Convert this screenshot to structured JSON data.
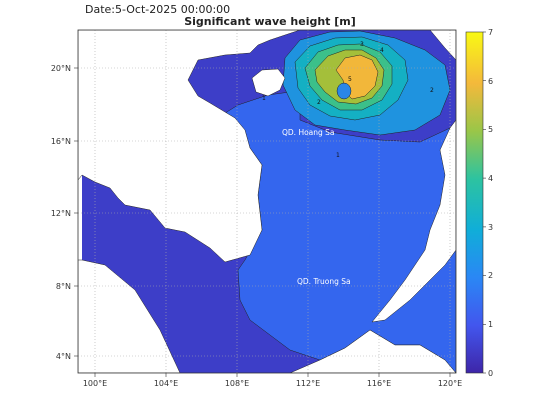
{
  "header": {
    "date_label": "Date:5-Oct-2025 00:00:00",
    "title": "Significant wave height [m]"
  },
  "map": {
    "lon_ticks": [
      {
        "value": 100,
        "label": "100°E"
      },
      {
        "value": 104,
        "label": "104°E"
      },
      {
        "value": 108,
        "label": "108°E"
      },
      {
        "value": 112,
        "label": "112°E"
      },
      {
        "value": 116,
        "label": "116°E"
      },
      {
        "value": 120,
        "label": "120°E"
      }
    ],
    "lat_ticks": [
      {
        "value": 4,
        "label": "4°N"
      },
      {
        "value": 8,
        "label": "8°N"
      },
      {
        "value": 12,
        "label": "12°N"
      },
      {
        "value": 16,
        "label": "16°N"
      },
      {
        "value": 20,
        "label": "20°N"
      }
    ],
    "places": [
      {
        "name": "QD. Hoang Sa"
      },
      {
        "name": "QD. Truong Sa"
      }
    ],
    "colors": {
      "land": "#ffffff",
      "background_sea": "#3d3ec8",
      "level_1": "#3466ee",
      "level_2": "#1f93df",
      "level_3": "#14b0c3",
      "level_4": "#3bc08a",
      "level_5": "#a4bf3a",
      "level_6": "#f2b73a",
      "storm_eye": "#2a86e6"
    }
  },
  "colorbar": {
    "min": 0,
    "max": 7,
    "ticks": [
      "0",
      "1",
      "2",
      "3",
      "4",
      "5",
      "6",
      "7"
    ]
  }
}
